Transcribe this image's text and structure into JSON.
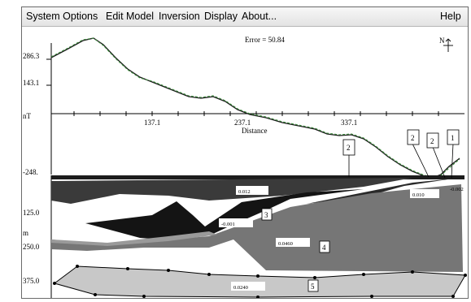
{
  "menubar": {
    "items": [
      "System Options",
      "Edit Model",
      "Inversion",
      "Display",
      "About..."
    ],
    "help": "Help"
  },
  "profile": {
    "error_label": "Error = 50.84",
    "y_axis_unit": "nT",
    "y_ticks": [
      "286.3",
      "143.1",
      "-248."
    ],
    "x_ticks": [
      "137.1",
      "237.1",
      "337.1"
    ],
    "x_axis_label": "Distance",
    "north_symbol": "N"
  },
  "section": {
    "depth_unit": "m",
    "depth_ticks": [
      "125.0",
      "250.0",
      "375.0"
    ]
  },
  "bodies": [
    {
      "number": "2",
      "value": "0.012",
      "fill": "#3a3a3a"
    },
    {
      "number": "3",
      "value": "-0.001",
      "fill": "#141414"
    },
    {
      "number": "4",
      "value": "0.0460",
      "fill": "#767676"
    },
    {
      "number": "5",
      "value": "0.0240",
      "fill": "#c8c8c8"
    },
    {
      "number": "2",
      "value": "0.010",
      "fill": "#2a2a2a"
    },
    {
      "number": "2",
      "value": "",
      "fill": ""
    },
    {
      "number": "1",
      "value": "-0.002",
      "fill": ""
    }
  ],
  "colors": {
    "observed_curve": "#1a1a1a",
    "calculated_curve": "#3c8a3c",
    "strip": "#1c1c1c"
  }
}
